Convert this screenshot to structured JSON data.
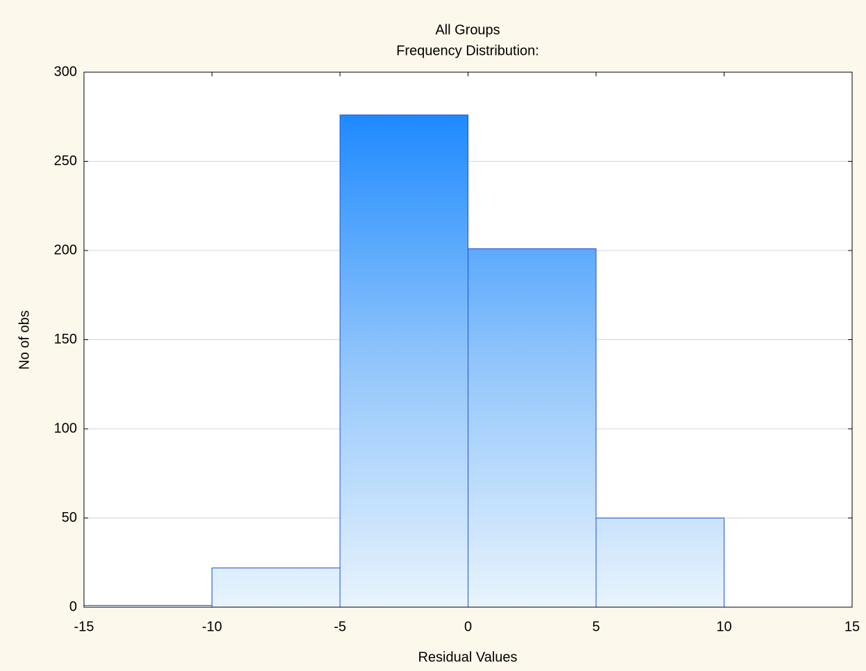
{
  "chart_data": {
    "type": "histogram",
    "title": "All Groups",
    "subtitle": "Frequency Distribution:",
    "x_label": "Residual Values",
    "y_label": "No of obs",
    "bins": [
      -15,
      -10,
      -5,
      0,
      5,
      10
    ],
    "values": [
      1,
      22,
      276,
      201,
      50
    ],
    "color": "#0a80ff",
    "xlim": [
      -15,
      15
    ],
    "ylim": [
      0,
      300
    ],
    "xticks": [
      -15,
      -10,
      -5,
      0,
      5,
      10,
      15
    ],
    "yticks": [
      0,
      50,
      100,
      150,
      200,
      250,
      300
    ],
    "grid": true
  }
}
